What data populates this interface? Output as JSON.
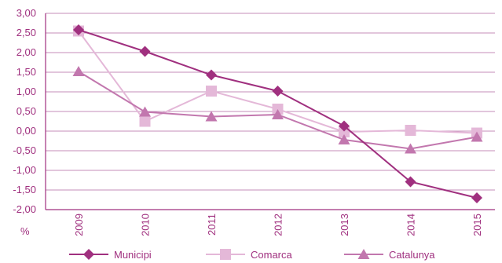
{
  "chart_data": {
    "type": "line",
    "ylabel": "%",
    "ylim": [
      -2.0,
      3.0
    ],
    "ystep": 0.5,
    "yticks": [
      "3,00",
      "2,50",
      "2,00",
      "1,50",
      "1,00",
      "0,50",
      "0,00",
      "-0,50",
      "-1,00",
      "-1,50",
      "-2,00"
    ],
    "x": [
      "2009",
      "2010",
      "2011",
      "2012",
      "2013",
      "2014",
      "2015"
    ],
    "grid": true,
    "legend_position": "bottom",
    "series": [
      {
        "name": "Municipi",
        "marker": "diamond",
        "color": "#a0307f",
        "values": [
          2.58,
          2.03,
          1.43,
          1.02,
          0.13,
          -1.29,
          -1.7
        ]
      },
      {
        "name": "Comarca",
        "marker": "square",
        "color": "#e4b8d8",
        "values": [
          2.55,
          0.25,
          1.02,
          0.56,
          -0.02,
          0.02,
          -0.05
        ]
      },
      {
        "name": "Catalunya",
        "marker": "triangle",
        "color": "#c277ae",
        "values": [
          1.52,
          0.49,
          0.37,
          0.42,
          -0.22,
          -0.45,
          -0.15
        ]
      }
    ]
  }
}
